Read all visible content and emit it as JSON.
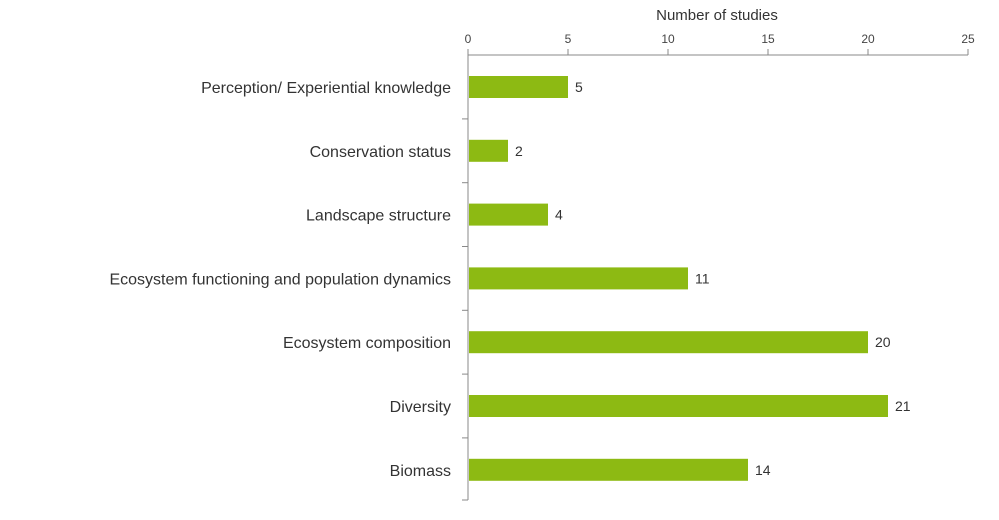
{
  "chart_data": {
    "type": "bar",
    "orientation": "horizontal",
    "xlabel": "Number of studies",
    "xlim": [
      0,
      25
    ],
    "xticks": [
      0,
      5,
      10,
      15,
      20,
      25
    ],
    "x_axis_position": "top",
    "categories": [
      "Perception/ Experiential knowledge",
      "Conservation status",
      "Landscape structure",
      "Ecosystem functioning and population dynamics",
      "Ecosystem composition",
      "Diversity",
      "Biomass"
    ],
    "values": [
      5,
      2,
      4,
      11,
      20,
      21,
      14
    ],
    "bar_color": "#8dba13",
    "data_labels": true,
    "grid": false,
    "legend": "none"
  }
}
